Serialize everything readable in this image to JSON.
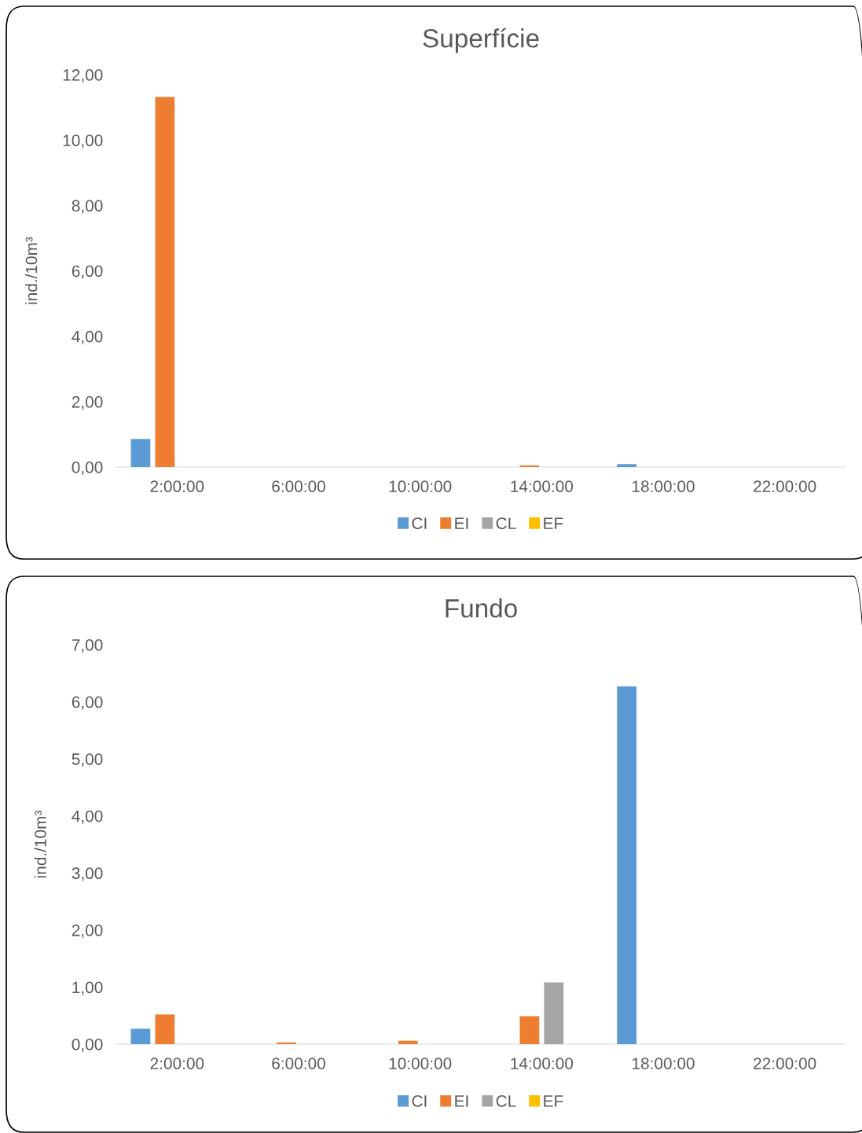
{
  "chart_data": [
    {
      "type": "bar",
      "title": "Superfície",
      "ylabel": "ind./10m³",
      "categories": [
        "2:00:00",
        "6:00:00",
        "10:00:00",
        "14:00:00",
        "18:00:00",
        "22:00:00"
      ],
      "series": [
        {
          "name": "CI",
          "color": "#5b9bd5",
          "values": [
            0.86,
            0,
            0,
            0,
            0.09,
            0
          ]
        },
        {
          "name": "EI",
          "color": "#ed7d31",
          "values": [
            11.32,
            0,
            0,
            0.05,
            0,
            0
          ]
        },
        {
          "name": "CL",
          "color": "#a5a5a5",
          "values": [
            0,
            0,
            0,
            0,
            0,
            0
          ]
        },
        {
          "name": "EF",
          "color": "#ffc000",
          "values": [
            0,
            0,
            0,
            0,
            0,
            0
          ]
        }
      ],
      "ylim": [
        0,
        12
      ],
      "yticks": [
        {
          "value": 0,
          "label": "0,00"
        },
        {
          "value": 2,
          "label": "2,00"
        },
        {
          "value": 4,
          "label": "4,00"
        },
        {
          "value": 6,
          "label": "6,00"
        },
        {
          "value": 8,
          "label": "8,00"
        },
        {
          "value": 10,
          "label": "10,00"
        },
        {
          "value": 12,
          "label": "12,00"
        }
      ],
      "legend": "bottom"
    },
    {
      "type": "bar",
      "title": "Fundo",
      "ylabel": "ind./10m³",
      "categories": [
        "2:00:00",
        "6:00:00",
        "10:00:00",
        "14:00:00",
        "18:00:00",
        "22:00:00"
      ],
      "series": [
        {
          "name": "CI",
          "color": "#5b9bd5",
          "values": [
            0.27,
            0,
            0,
            0,
            6.27,
            0
          ]
        },
        {
          "name": "EI",
          "color": "#ed7d31",
          "values": [
            0.52,
            0.03,
            0.06,
            0.49,
            0,
            0
          ]
        },
        {
          "name": "CL",
          "color": "#a5a5a5",
          "values": [
            0,
            0,
            0,
            1.08,
            0,
            0
          ]
        },
        {
          "name": "EF",
          "color": "#ffc000",
          "values": [
            0,
            0,
            0,
            0,
            0,
            0
          ]
        }
      ],
      "ylim": [
        0,
        7
      ],
      "yticks": [
        {
          "value": 0,
          "label": "0,00"
        },
        {
          "value": 1,
          "label": "1,00"
        },
        {
          "value": 2,
          "label": "2,00"
        },
        {
          "value": 3,
          "label": "3,00"
        },
        {
          "value": 4,
          "label": "4,00"
        },
        {
          "value": 5,
          "label": "5,00"
        },
        {
          "value": 6,
          "label": "6,00"
        },
        {
          "value": 7,
          "label": "7,00"
        }
      ],
      "legend": "bottom"
    }
  ]
}
